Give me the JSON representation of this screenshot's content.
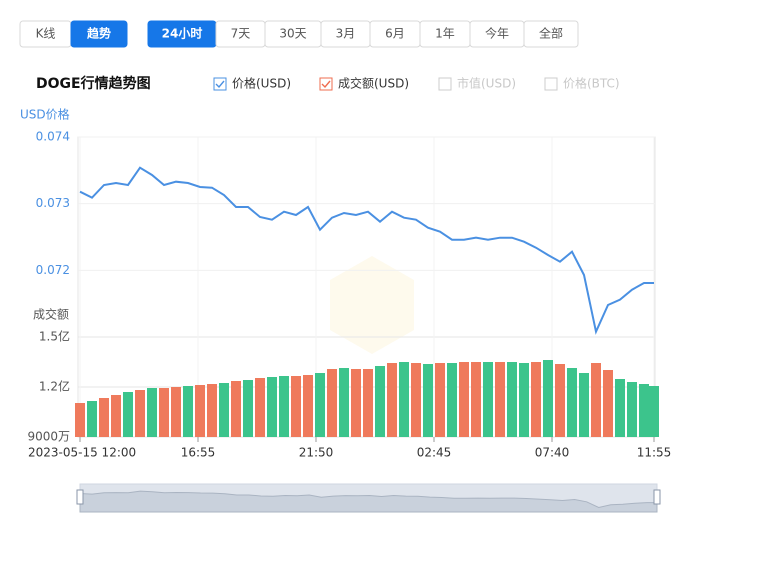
{
  "ui": {
    "view_tabs": [
      "K线",
      "趋势"
    ],
    "active_view": 1,
    "period_tabs": [
      "24小时",
      "7天",
      "30天",
      "3月",
      "6月",
      "1年",
      "今年",
      "全部"
    ],
    "active_period": 0,
    "title": "DOGE行情趋势图",
    "toggles": [
      {
        "label": "价格(USD)",
        "checked": true,
        "color": "#4a90e2"
      },
      {
        "label": "成交额(USD)",
        "checked": true,
        "color": "#ef6c4f"
      },
      {
        "label": "市值(USD)",
        "checked": false,
        "color": "#cccccc"
      },
      {
        "label": "价格(BTC)",
        "checked": false,
        "color": "#cccccc"
      }
    ]
  },
  "chart_data": [
    {
      "type": "line",
      "ylabel": "USD价格",
      "color": "#4a90e2",
      "x": [
        0,
        30,
        60,
        90,
        120,
        150,
        180,
        210,
        240,
        270,
        300,
        330,
        360,
        390,
        420,
        450,
        480,
        510,
        540,
        570,
        600,
        630,
        660,
        690,
        720,
        750,
        780,
        810,
        840,
        870,
        900,
        930,
        960,
        990,
        1020,
        1050,
        1080,
        1110,
        1140,
        1170,
        1200,
        1230,
        1260,
        1290,
        1320,
        1350,
        1380,
        1410,
        1435
      ],
      "values": [
        0.07318,
        0.07309,
        0.07328,
        0.07331,
        0.07328,
        0.07354,
        0.07343,
        0.07328,
        0.07333,
        0.07331,
        0.07325,
        0.07324,
        0.07313,
        0.07295,
        0.07295,
        0.0728,
        0.07276,
        0.07288,
        0.07283,
        0.07295,
        0.07261,
        0.07279,
        0.07286,
        0.07283,
        0.07288,
        0.07273,
        0.07288,
        0.07279,
        0.07276,
        0.07264,
        0.07258,
        0.07246,
        0.07246,
        0.07249,
        0.07246,
        0.07249,
        0.07249,
        0.07243,
        0.07234,
        0.07223,
        0.07213,
        0.07228,
        0.07193,
        0.07108,
        0.07148,
        0.07156,
        0.07171,
        0.07181,
        0.07181
      ],
      "xlim": [
        0,
        1435
      ],
      "ylim": [
        0.071,
        0.074
      ],
      "yticks": [
        0.072,
        0.073,
        0.074
      ],
      "grid": true
    },
    {
      "type": "bar",
      "ylabel": "成交额",
      "x": [
        0,
        30,
        60,
        90,
        120,
        150,
        180,
        210,
        240,
        270,
        300,
        330,
        360,
        390,
        420,
        450,
        480,
        510,
        540,
        570,
        600,
        630,
        660,
        690,
        720,
        750,
        780,
        810,
        840,
        870,
        900,
        930,
        960,
        990,
        1020,
        1050,
        1080,
        1110,
        1140,
        1170,
        1200,
        1230,
        1260,
        1290,
        1320,
        1350,
        1380,
        1410,
        1435
      ],
      "values": [
        110400000,
        111600000,
        113400000,
        115200000,
        117000000,
        118200000,
        119400000,
        119400000,
        120000000,
        120600000,
        121200000,
        121800000,
        122400000,
        123600000,
        124200000,
        125400000,
        126000000,
        126600000,
        126600000,
        127200000,
        128400000,
        130800000,
        131400000,
        130800000,
        130800000,
        132600000,
        134400000,
        135000000,
        134400000,
        133800000,
        134400000,
        134400000,
        135000000,
        135000000,
        135000000,
        135000000,
        135000000,
        134400000,
        135000000,
        136200000,
        133800000,
        131400000,
        128400000,
        134400000,
        130200000,
        124800000,
        123000000,
        121800000,
        120600000
      ],
      "colors": [
        "#ef7a5c",
        "#3cc48c",
        "#ef7a5c",
        "#ef7a5c",
        "#3cc48c",
        "#ef7a5c",
        "#3cc48c",
        "#ef7a5c",
        "#ef7a5c",
        "#3cc48c",
        "#ef7a5c",
        "#ef7a5c",
        "#3cc48c",
        "#ef7a5c",
        "#3cc48c",
        "#ef7a5c",
        "#3cc48c",
        "#3cc48c",
        "#ef7a5c",
        "#ef7a5c",
        "#3cc48c",
        "#ef7a5c",
        "#3cc48c",
        "#ef7a5c",
        "#ef7a5c",
        "#3cc48c",
        "#ef7a5c",
        "#3cc48c",
        "#ef7a5c",
        "#3cc48c",
        "#ef7a5c",
        "#3cc48c",
        "#ef7a5c",
        "#ef7a5c",
        "#3cc48c",
        "#ef7a5c",
        "#3cc48c",
        "#3cc48c",
        "#ef7a5c",
        "#3cc48c",
        "#ef7a5c",
        "#3cc48c",
        "#3cc48c",
        "#ef7a5c",
        "#ef7a5c",
        "#3cc48c",
        "#3cc48c",
        "#3cc48c",
        "#3cc48c"
      ],
      "xlim": [
        0,
        1435
      ],
      "ylim": [
        90000000,
        150000000
      ],
      "yticks": [
        {
          "value": 90000000,
          "label": "9000万"
        },
        {
          "value": 120000000,
          "label": "1.2亿"
        },
        {
          "value": 150000000,
          "label": "1.5亿"
        }
      ],
      "xticks": [
        {
          "value": 0,
          "label": "2023-05-15 12:00"
        },
        {
          "value": 295,
          "label": "16:55"
        },
        {
          "value": 590,
          "label": "21:50"
        },
        {
          "value": 885,
          "label": "02:45"
        },
        {
          "value": 1180,
          "label": "07:40"
        },
        {
          "value": 1435,
          "label": "11:55"
        }
      ],
      "grid": true
    }
  ]
}
